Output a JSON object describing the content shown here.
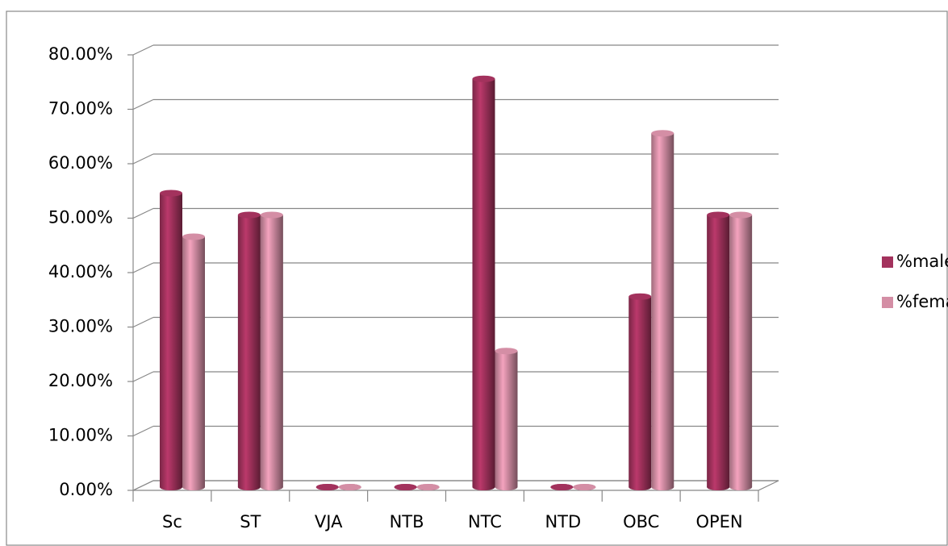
{
  "chart_data": {
    "type": "bar3d",
    "categories": [
      "Sc",
      "ST",
      "VJA",
      "NTB",
      "NTC",
      "NTD",
      "OBC",
      "OPEN"
    ],
    "series": [
      {
        "name": "%male",
        "color": "#a3325d",
        "values": [
          54,
          50,
          0,
          0,
          75,
          0,
          35,
          50
        ]
      },
      {
        "name": "%female",
        "color": "#d48ea5",
        "values": [
          46,
          50,
          0,
          0,
          25,
          0,
          65,
          50
        ]
      }
    ],
    "ylim": [
      0,
      80
    ],
    "yticks": [
      {
        "value": 0,
        "label": "0.00%"
      },
      {
        "value": 10,
        "label": "10.00%"
      },
      {
        "value": 20,
        "label": "20.00%"
      },
      {
        "value": 30,
        "label": "30.00%"
      },
      {
        "value": 40,
        "label": "40.00%"
      },
      {
        "value": 50,
        "label": "50.00%"
      },
      {
        "value": 60,
        "label": "60.00%"
      },
      {
        "value": 70,
        "label": "70.00%"
      },
      {
        "value": 80,
        "label": "80.00%"
      }
    ],
    "grid": true,
    "legend": "right"
  }
}
